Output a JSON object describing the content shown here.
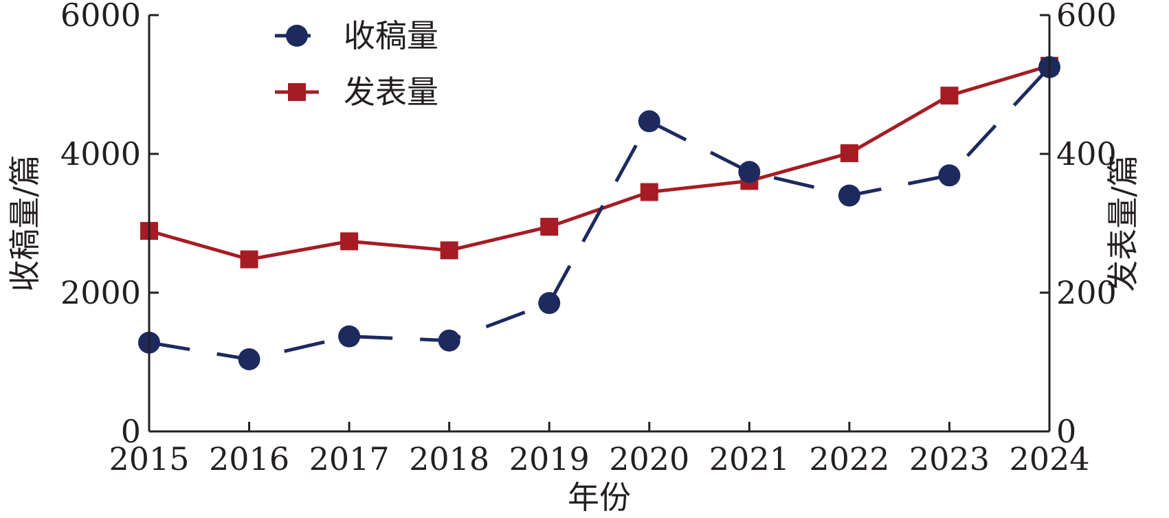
{
  "chart_data": {
    "type": "line",
    "x": [
      2015,
      2016,
      2017,
      2018,
      2019,
      2020,
      2021,
      2022,
      2023,
      2024
    ],
    "xlabel": "年份",
    "y_left_label": "收稿量/篇",
    "y_right_label": "发表量/篇",
    "y_left_lim": [
      0,
      6000
    ],
    "y_right_lim": [
      0,
      600
    ],
    "y_left_ticks": [
      0,
      2000,
      4000,
      6000
    ],
    "y_right_ticks": [
      0,
      200,
      400,
      600
    ],
    "grid": false,
    "legend_position": "top-left",
    "series": [
      {
        "name": "收稿量",
        "axis": "left",
        "style": "dashed",
        "marker": "circle",
        "color": "#1c2a5e",
        "values": [
          1280,
          1040,
          1370,
          1310,
          1850,
          4470,
          3740,
          3400,
          3690,
          5250
        ]
      },
      {
        "name": "发表量",
        "axis": "right",
        "style": "solid",
        "marker": "square",
        "color": "#a61c24",
        "values": [
          289,
          248,
          274,
          261,
          295,
          345,
          361,
          401,
          484,
          527
        ]
      }
    ]
  }
}
